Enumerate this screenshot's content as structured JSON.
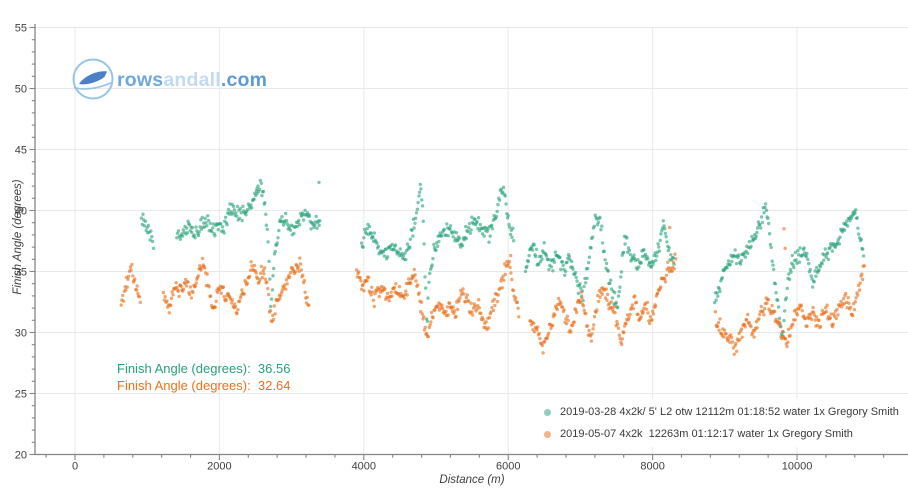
{
  "logo": {
    "part1": "rows",
    "part2": "andall",
    "part3": ".com"
  },
  "axes": {
    "x": {
      "title": "Distance (m)",
      "min": -554,
      "max": 11537,
      "major_ticks": [
        0,
        2000,
        4000,
        6000,
        8000,
        10000
      ],
      "minor_start": -400,
      "minor_end": 11400,
      "minor_step": 400
    },
    "y": {
      "title": "Finish Angle (degrees)",
      "min": 20,
      "max": 55,
      "major_ticks": [
        20,
        25,
        30,
        35,
        40,
        45,
        50,
        55
      ],
      "minor_step": 1
    }
  },
  "annotations": [
    {
      "text": "Finish Angle (degrees):  36.56",
      "color": "#27a17a"
    },
    {
      "text": "Finish Angle (degrees):  32.64",
      "color": "#ee7118"
    }
  ],
  "legend": {
    "items": [
      {
        "label": "2019-03-28 4x2k/ 5' L2 otw 12112m 01:18:52 water 1x Gregory Smith",
        "color": "#8ecfba"
      },
      {
        "label": "2019-05-07 4x2k  12263m 01:12:17 water 1x Gregory Smith",
        "color": "#f2b488"
      }
    ]
  },
  "chart_data": {
    "type": "scatter",
    "title": "",
    "xlabel": "Distance (m)",
    "ylabel": "Finish Angle (degrees)",
    "xlim": [
      -554,
      11537
    ],
    "ylim": [
      20,
      55
    ],
    "grid": true,
    "legend_position": "bottom-right",
    "marker_px": 1.7,
    "marker_opacity": 0.62,
    "stroke_step_m": 10.8,
    "jitter_deg": 0.75,
    "series": [
      {
        "name": "2019-03-28 4x2k/ 5' L2 otw 12112m 01:18:52 water 1x Gregory Smith",
        "color": "#2aa37d",
        "seed": 13,
        "clusters": [
          [
            [
              920,
              39.6
            ],
            [
              1000,
              38.6
            ],
            [
              1090,
              37.3
            ]
          ],
          [
            [
              1410,
              38.3
            ],
            [
              1490,
              37.6
            ],
            [
              1570,
              39.0
            ],
            [
              1650,
              38.1
            ],
            [
              1730,
              38.5
            ],
            [
              1810,
              39.4
            ],
            [
              1890,
              38.3
            ],
            [
              1970,
              38.8
            ],
            [
              2050,
              38.5
            ],
            [
              2130,
              39.8
            ],
            [
              2210,
              40.1
            ],
            [
              2290,
              39.6
            ],
            [
              2370,
              40.0
            ],
            [
              2450,
              40.6
            ],
            [
              2560,
              42.2
            ],
            [
              2630,
              40.5
            ],
            [
              2680,
              37.2
            ],
            [
              2715,
              31.9
            ],
            [
              2760,
              36.2
            ],
            [
              2830,
              39.0
            ],
            [
              2920,
              39.3
            ],
            [
              3020,
              38.4
            ],
            [
              3120,
              39.2
            ],
            [
              3200,
              39.9
            ],
            [
              3280,
              38.6
            ],
            [
              3360,
              39.3
            ],
            [
              3395,
              38.8
            ]
          ],
          [
            [
              3970,
              37.2
            ],
            [
              4040,
              38.5
            ],
            [
              4110,
              38.0
            ],
            [
              4180,
              37.3
            ],
            [
              4250,
              36.5
            ],
            [
              4320,
              36.2
            ],
            [
              4400,
              37.1
            ],
            [
              4480,
              36.4
            ],
            [
              4560,
              36.0
            ],
            [
              4640,
              37.5
            ],
            [
              4700,
              38.9
            ],
            [
              4750,
              40.6
            ],
            [
              4795,
              42.2
            ],
            [
              4835,
              37.5
            ],
            [
              4870,
              30.6
            ],
            [
              4915,
              34.8
            ],
            [
              4980,
              36.9
            ],
            [
              5060,
              37.7
            ],
            [
              5150,
              38.3
            ],
            [
              5250,
              37.9
            ],
            [
              5350,
              37.4
            ],
            [
              5450,
              38.6
            ],
            [
              5550,
              39.1
            ],
            [
              5650,
              38.4
            ],
            [
              5740,
              38.1
            ],
            [
              5830,
              39.4
            ],
            [
              5900,
              41.9
            ],
            [
              5950,
              41.0
            ],
            [
              6010,
              39.1
            ],
            [
              6080,
              37.7
            ]
          ],
          [
            [
              6240,
              35.3
            ],
            [
              6330,
              37.3
            ],
            [
              6420,
              35.8
            ],
            [
              6500,
              36.9
            ],
            [
              6590,
              35.3
            ],
            [
              6680,
              36.6
            ],
            [
              6770,
              35.0
            ],
            [
              6860,
              36.2
            ],
            [
              6950,
              34.2
            ],
            [
              7040,
              33.0
            ],
            [
              7120,
              36.0
            ],
            [
              7200,
              38.9
            ],
            [
              7270,
              39.3
            ],
            [
              7350,
              35.3
            ],
            [
              7440,
              33.3
            ],
            [
              7520,
              32.0
            ],
            [
              7610,
              37.8
            ],
            [
              7700,
              36.2
            ],
            [
              7790,
              35.4
            ],
            [
              7880,
              36.8
            ],
            [
              7970,
              35.3
            ],
            [
              8060,
              36.4
            ],
            [
              8150,
              38.8
            ],
            [
              8240,
              36.6
            ],
            [
              8300,
              35.7
            ]
          ],
          [
            [
              8860,
              32.6
            ],
            [
              8950,
              34.2
            ],
            [
              9040,
              35.6
            ],
            [
              9130,
              36.2
            ],
            [
              9220,
              35.7
            ],
            [
              9310,
              36.8
            ],
            [
              9400,
              37.7
            ],
            [
              9490,
              38.9
            ],
            [
              9560,
              40.3
            ],
            [
              9620,
              38.0
            ],
            [
              9690,
              34.3
            ],
            [
              9760,
              31.0
            ],
            [
              9800,
              29.8
            ],
            [
              9860,
              33.4
            ],
            [
              9930,
              35.8
            ],
            [
              10010,
              36.3
            ],
            [
              10090,
              36.8
            ],
            [
              10160,
              35.6
            ],
            [
              10220,
              33.9
            ],
            [
              10300,
              35.3
            ],
            [
              10390,
              36.4
            ],
            [
              10480,
              36.9
            ],
            [
              10570,
              37.5
            ],
            [
              10650,
              38.6
            ],
            [
              10730,
              39.5
            ],
            [
              10800,
              39.9
            ],
            [
              10860,
              38.1
            ],
            [
              10930,
              36.8
            ]
          ]
        ],
        "outliers": [
          [
            3379,
            42.3
          ],
          [
            2520,
            41.8
          ]
        ]
      },
      {
        "name": "2019-05-07 4x2k  12263m 01:12:17 water 1x Gregory Smith",
        "color": "#e8701a",
        "seed": 47,
        "clusters": [
          [
            [
              640,
              32.4
            ],
            [
              700,
              33.6
            ],
            [
              780,
              35.1
            ],
            [
              850,
              33.8
            ],
            [
              905,
              32.2
            ]
          ],
          [
            [
              1225,
              33.2
            ],
            [
              1300,
              31.9
            ],
            [
              1390,
              34.2
            ],
            [
              1460,
              33.2
            ],
            [
              1540,
              34.3
            ],
            [
              1620,
              33.0
            ],
            [
              1700,
              34.6
            ],
            [
              1770,
              35.7
            ],
            [
              1840,
              34.0
            ],
            [
              1920,
              31.7
            ],
            [
              2000,
              33.8
            ],
            [
              2080,
              33.0
            ],
            [
              2160,
              32.9
            ],
            [
              2230,
              31.6
            ],
            [
              2310,
              33.3
            ],
            [
              2390,
              34.1
            ],
            [
              2460,
              35.8
            ],
            [
              2530,
              34.3
            ],
            [
              2600,
              35.3
            ],
            [
              2660,
              33.9
            ],
            [
              2720,
              30.9
            ],
            [
              2800,
              32.9
            ],
            [
              2880,
              33.8
            ],
            [
              2960,
              34.5
            ],
            [
              3040,
              35.1
            ],
            [
              3120,
              35.6
            ],
            [
              3190,
              33.4
            ],
            [
              3240,
              31.6
            ]
          ],
          [
            [
              3900,
              34.8
            ],
            [
              3970,
              33.9
            ],
            [
              4050,
              34.4
            ],
            [
              4150,
              32.6
            ],
            [
              4240,
              33.8
            ],
            [
              4330,
              32.9
            ],
            [
              4420,
              33.5
            ],
            [
              4510,
              33.0
            ],
            [
              4600,
              33.6
            ],
            [
              4690,
              34.8
            ],
            [
              4760,
              33.5
            ],
            [
              4830,
              30.8
            ],
            [
              4880,
              29.4
            ],
            [
              4950,
              31.5
            ],
            [
              5030,
              32.5
            ],
            [
              5110,
              31.6
            ],
            [
              5190,
              32.2
            ],
            [
              5270,
              31.5
            ],
            [
              5350,
              33.6
            ],
            [
              5430,
              32.6
            ],
            [
              5510,
              31.6
            ],
            [
              5590,
              32.4
            ],
            [
              5700,
              30.2
            ],
            [
              5790,
              32.3
            ],
            [
              5870,
              33.2
            ],
            [
              5950,
              35.0
            ],
            [
              6010,
              36.0
            ],
            [
              6080,
              32.9
            ],
            [
              6150,
              31.5
            ]
          ],
          [
            [
              6300,
              31.0
            ],
            [
              6400,
              30.1
            ],
            [
              6480,
              28.9
            ],
            [
              6560,
              29.9
            ],
            [
              6660,
              31.9
            ],
            [
              6720,
              32.5
            ],
            [
              6800,
              31.0
            ],
            [
              6870,
              30.0
            ],
            [
              6950,
              32.0
            ],
            [
              7010,
              33.3
            ],
            [
              7090,
              30.6
            ],
            [
              7160,
              29.8
            ],
            [
              7240,
              32.6
            ],
            [
              7310,
              33.8
            ],
            [
              7400,
              32.4
            ],
            [
              7480,
              31.6
            ],
            [
              7560,
              29.2
            ],
            [
              7650,
              30.8
            ],
            [
              7740,
              32.8
            ],
            [
              7820,
              31.3
            ],
            [
              7900,
              32.2
            ],
            [
              7980,
              31.0
            ],
            [
              8060,
              32.9
            ],
            [
              8150,
              34.6
            ],
            [
              8240,
              35.3
            ],
            [
              8330,
              36.0
            ]
          ],
          [
            [
              8870,
              31.3
            ],
            [
              8960,
              30.3
            ],
            [
              9050,
              29.5
            ],
            [
              9140,
              28.7
            ],
            [
              9230,
              30.0
            ],
            [
              9320,
              31.2
            ],
            [
              9410,
              30.1
            ],
            [
              9500,
              31.6
            ],
            [
              9590,
              32.6
            ],
            [
              9680,
              31.5
            ],
            [
              9770,
              30.4
            ],
            [
              9860,
              29.2
            ],
            [
              9950,
              31.0
            ],
            [
              10040,
              32.0
            ],
            [
              10130,
              30.7
            ],
            [
              10220,
              31.7
            ],
            [
              10310,
              30.5
            ],
            [
              10400,
              31.9
            ],
            [
              10490,
              30.9
            ],
            [
              10580,
              32.0
            ],
            [
              10670,
              32.8
            ],
            [
              10760,
              31.5
            ],
            [
              10820,
              32.8
            ],
            [
              10880,
              34.6
            ],
            [
              10940,
              35.3
            ]
          ]
        ],
        "outliers": [
          [
            6035,
            36.3
          ],
          [
            8237,
            38.6
          ],
          [
            9820,
            38.5
          ],
          [
            9835,
            36.9
          ]
        ]
      }
    ]
  }
}
